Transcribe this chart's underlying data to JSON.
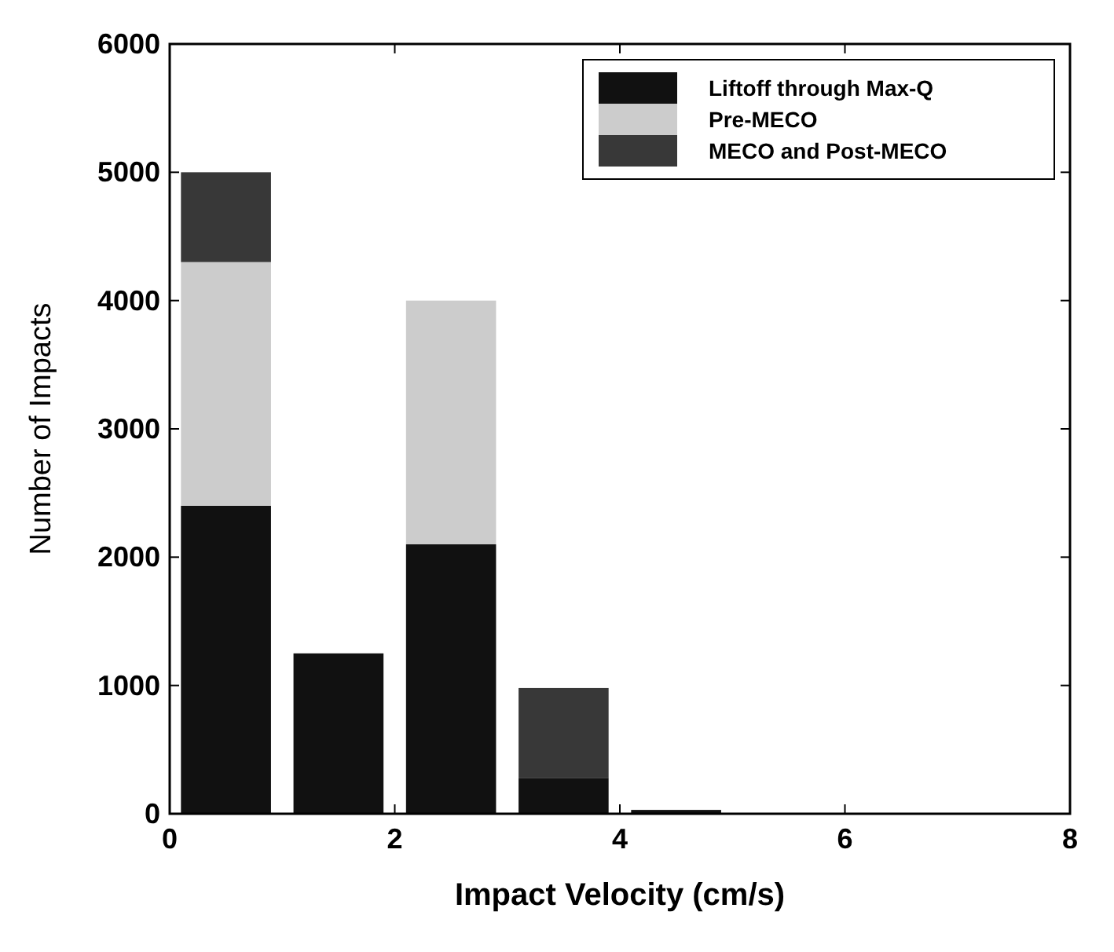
{
  "chart_data": {
    "type": "bar",
    "stacked": true,
    "xlabel": "Impact Velocity (cm/s)",
    "ylabel": "Number of Impacts",
    "x": [
      0.5,
      1.5,
      2.5,
      3.5,
      4.5
    ],
    "series": [
      {
        "name": "Liftoff through Max-Q",
        "color": "#111111",
        "values": [
          2400,
          1250,
          2100,
          280,
          30
        ]
      },
      {
        "name": "Pre-MECO",
        "color": "#cccccc",
        "values": [
          1900,
          0,
          1900,
          0,
          0
        ]
      },
      {
        "name": "MECO and Post-MECO",
        "color": "#383838",
        "values": [
          700,
          0,
          0,
          700,
          0
        ]
      }
    ],
    "xlim": [
      0,
      8
    ],
    "xticks": [
      0,
      2,
      4,
      6,
      8
    ],
    "ylim": [
      0,
      6000
    ],
    "yticks": [
      0,
      1000,
      2000,
      3000,
      4000,
      5000,
      6000
    ],
    "grid": false,
    "legend": "top right"
  }
}
